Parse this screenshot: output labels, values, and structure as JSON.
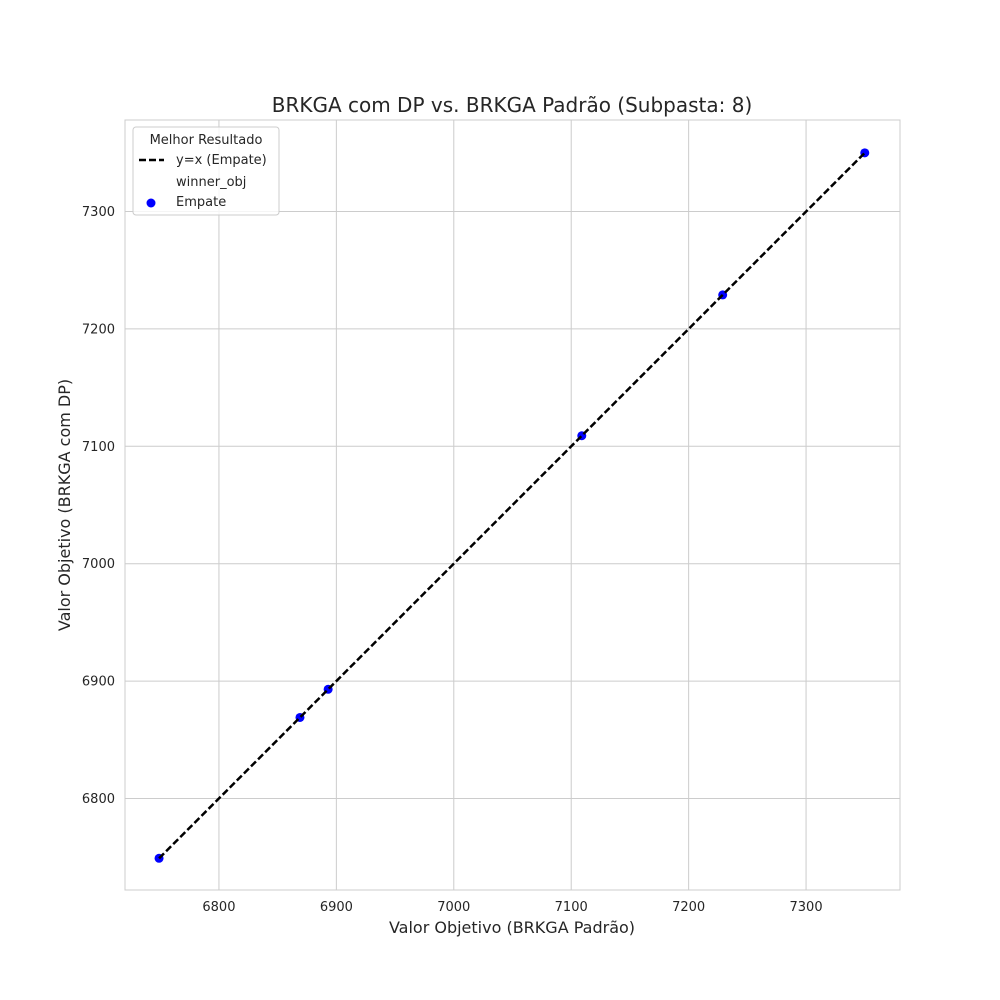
{
  "chart_data": {
    "type": "scatter",
    "title": "BRKGA com DP vs. BRKGA Padrão (Subpasta: 8)",
    "xlabel": "Valor Objetivo (BRKGA Padrão)",
    "ylabel": "Valor Objetivo (BRKGA com DP)",
    "xlim": [
      6720,
      7380
    ],
    "ylim": [
      6722,
      7378
    ],
    "xticks": [
      6800,
      6900,
      7000,
      7100,
      7200,
      7300
    ],
    "yticks": [
      6800,
      6900,
      7000,
      7100,
      7200,
      7300
    ],
    "grid": true,
    "legend": {
      "title": "Melhor Resultado",
      "placement": "top-left",
      "entries": [
        {
          "label": "y=x (Empate)",
          "kind": "line"
        },
        {
          "label": "winner_obj",
          "kind": "header"
        },
        {
          "label": "Empate",
          "kind": "marker"
        }
      ]
    },
    "reference_line": {
      "name": "y=x (Empate)",
      "x": [
        6749,
        7350
      ],
      "y": [
        6749,
        7350
      ],
      "color": "#000000",
      "style": "dashed"
    },
    "series": [
      {
        "name": "Empate",
        "color": "#0000ff",
        "points": [
          {
            "x": 6749,
            "y": 6749
          },
          {
            "x": 6869,
            "y": 6869
          },
          {
            "x": 6893,
            "y": 6893
          },
          {
            "x": 7109,
            "y": 7109
          },
          {
            "x": 7229,
            "y": 7229
          },
          {
            "x": 7350,
            "y": 7350
          }
        ]
      }
    ]
  }
}
